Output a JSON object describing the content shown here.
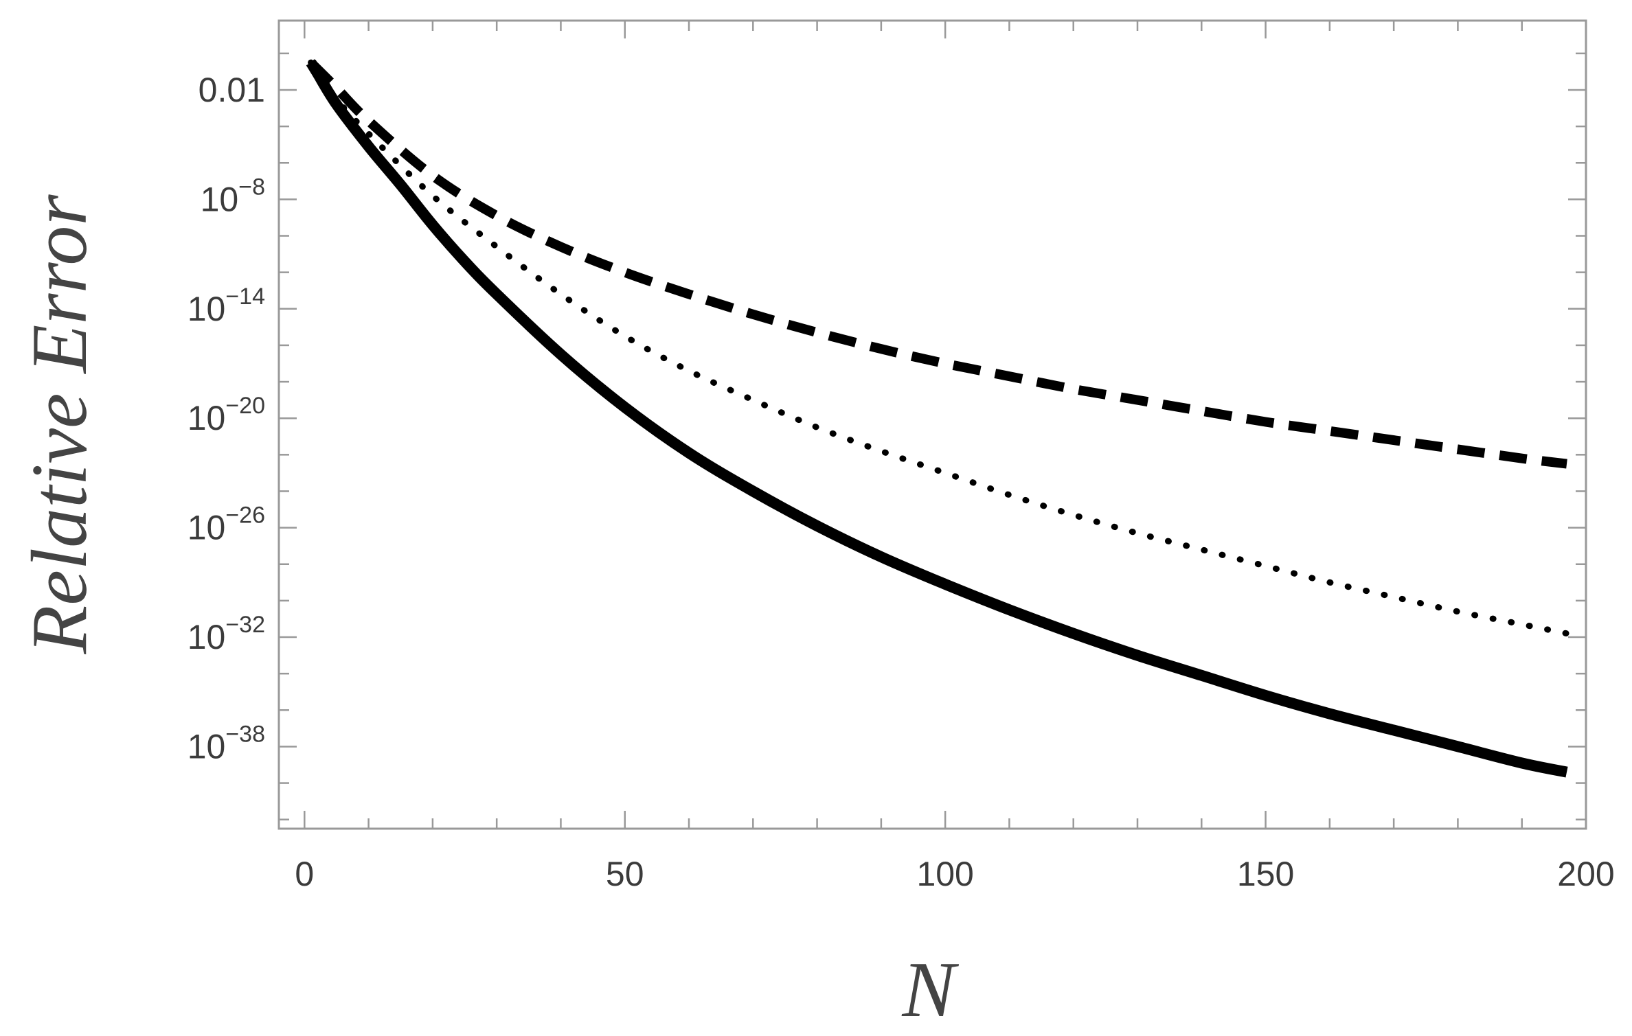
{
  "chart_data": {
    "type": "line",
    "title": "",
    "xlabel": "N",
    "ylabel": "Relative Error",
    "xlim": [
      -4,
      200
    ],
    "ylim_log10": [
      -42.5,
      1.8
    ],
    "yscale": "log",
    "grid": false,
    "legend": "none",
    "x_ticks": [
      {
        "value": 0,
        "label": "0"
      },
      {
        "value": 50,
        "label": "50"
      },
      {
        "value": 100,
        "label": "100"
      },
      {
        "value": 150,
        "label": "150"
      },
      {
        "value": 200,
        "label": "200"
      }
    ],
    "y_ticks": [
      {
        "log10": -2,
        "base": "0.01",
        "exp": ""
      },
      {
        "log10": -8,
        "base": "10",
        "exp": "−8"
      },
      {
        "log10": -14,
        "base": "10",
        "exp": "−14"
      },
      {
        "log10": -20,
        "base": "10",
        "exp": "−20"
      },
      {
        "log10": -26,
        "base": "10",
        "exp": "−26"
      },
      {
        "log10": -32,
        "base": "10",
        "exp": "−32"
      },
      {
        "log10": -38,
        "base": "10",
        "exp": "−38"
      }
    ],
    "series": [
      {
        "style": "solid",
        "x": [
          1,
          2,
          5,
          10,
          15,
          20,
          25,
          30,
          40,
          50,
          60,
          70,
          80,
          90,
          100,
          110,
          120,
          130,
          140,
          150,
          160,
          170,
          180,
          190,
          197
        ],
        "log10_y": [
          -0.5,
          -1.08,
          -2.8,
          -5.1,
          -7.2,
          -9.4,
          -11.4,
          -13.2,
          -16.5,
          -19.4,
          -21.9,
          -24.0,
          -25.9,
          -27.6,
          -29.1,
          -30.5,
          -31.8,
          -33.0,
          -34.1,
          -35.2,
          -36.2,
          -37.1,
          -38.0,
          -38.9,
          -39.4
        ]
      },
      {
        "style": "dotted",
        "x": [
          1,
          5,
          10,
          20,
          30,
          40,
          50,
          60,
          70,
          80,
          90,
          100,
          110,
          120,
          130,
          140,
          150,
          160,
          170,
          180,
          190,
          197
        ],
        "log10_y": [
          -0.5,
          -2.5,
          -4.4,
          -7.8,
          -10.6,
          -13.2,
          -15.5,
          -17.4,
          -19.0,
          -20.5,
          -21.8,
          -23.0,
          -24.2,
          -25.3,
          -26.3,
          -27.2,
          -28.1,
          -29.0,
          -29.8,
          -30.6,
          -31.3,
          -31.8
        ]
      },
      {
        "style": "dashed",
        "x": [
          1,
          5,
          10,
          20,
          30,
          40,
          50,
          60,
          70,
          80,
          90,
          100,
          110,
          120,
          130,
          140,
          150,
          160,
          170,
          180,
          190,
          197
        ],
        "log10_y": [
          -0.5,
          -1.9,
          -3.7,
          -6.7,
          -8.9,
          -10.6,
          -12.0,
          -13.2,
          -14.3,
          -15.3,
          -16.2,
          -17.0,
          -17.7,
          -18.4,
          -19.0,
          -19.6,
          -20.2,
          -20.7,
          -21.2,
          -21.7,
          -22.2,
          -22.5
        ]
      }
    ]
  }
}
